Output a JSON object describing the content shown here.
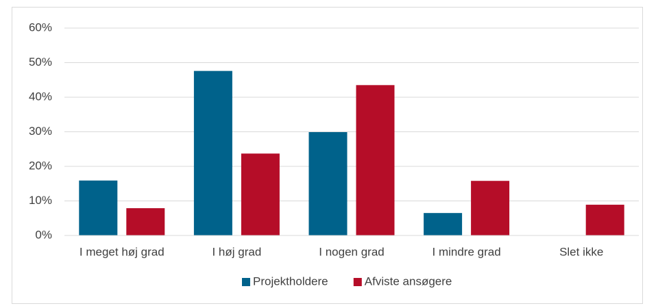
{
  "chart_data": {
    "type": "bar",
    "categories": [
      "I meget høj grad",
      "I høj grad",
      "I nogen grad",
      "I mindre grad",
      "Slet ikke"
    ],
    "series": [
      {
        "name": "Projektholdere",
        "color": "#00628b",
        "values": [
          15.9,
          47.6,
          29.9,
          6.5,
          0
        ]
      },
      {
        "name": "Afviste ansøgere",
        "color": "#b50d28",
        "values": [
          7.9,
          23.7,
          43.5,
          15.8,
          8.9
        ]
      }
    ],
    "ylim": [
      0,
      60
    ],
    "yticks": [
      {
        "value": 0,
        "label": "0%"
      },
      {
        "value": 10,
        "label": "10%"
      },
      {
        "value": 20,
        "label": "20%"
      },
      {
        "value": 30,
        "label": "30%"
      },
      {
        "value": 40,
        "label": "40%"
      },
      {
        "value": 50,
        "label": "50%"
      },
      {
        "value": 60,
        "label": "60%"
      }
    ],
    "grid": true,
    "legend": "bottom"
  }
}
